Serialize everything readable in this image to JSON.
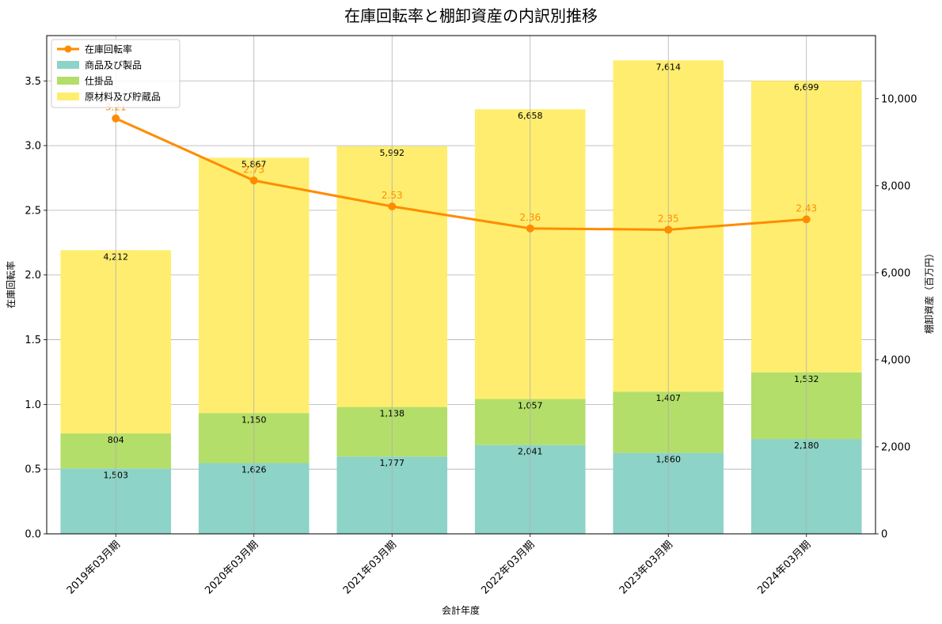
{
  "chart_data": {
    "type": "bar",
    "title": "在庫回転率と棚卸資産の内訳別推移",
    "xlabel": "会計年度",
    "ylabel_left": "在庫回転率",
    "ylabel_right": "棚卸資産（百万円）",
    "categories": [
      "2019年03月期",
      "2020年03月期",
      "2021年03月期",
      "2022年03月期",
      "2023年03月期",
      "2024年03月期"
    ],
    "ylim_left": [
      0,
      3.85
    ],
    "ylim_right": [
      0,
      11450
    ],
    "left_ticks": [
      "0.0",
      "0.5",
      "1.0",
      "1.5",
      "2.0",
      "2.5",
      "3.0",
      "3.5"
    ],
    "left_tick_values": [
      0,
      0.5,
      1.0,
      1.5,
      2.0,
      2.5,
      3.0,
      3.5
    ],
    "right_ticks": [
      "0",
      "2,000",
      "4,000",
      "6,000",
      "8,000",
      "10,000"
    ],
    "right_tick_values": [
      0,
      2000,
      4000,
      6000,
      8000,
      10000
    ],
    "grid": true,
    "legend_position": "top-left",
    "series": [
      {
        "name": "商品及び製品",
        "kind": "bar",
        "axis": "right",
        "color": "#8dd3c7",
        "values": [
          1503,
          1626,
          1777,
          2041,
          1860,
          2180
        ],
        "labels": [
          "1,503",
          "1,626",
          "1,777",
          "2,041",
          "1,860",
          "2,180"
        ]
      },
      {
        "name": "仕掛品",
        "kind": "bar",
        "axis": "right",
        "color": "#b3de69",
        "values": [
          804,
          1150,
          1138,
          1057,
          1407,
          1532
        ],
        "labels": [
          "804",
          "1,150",
          "1,138",
          "1,057",
          "1,407",
          "1,532"
        ]
      },
      {
        "name": "原材料及び貯蔵品",
        "kind": "bar",
        "axis": "right",
        "color": "#ffed6f",
        "values": [
          4212,
          5867,
          5992,
          6658,
          7614,
          6699
        ],
        "labels": [
          "4,212",
          "5,867",
          "5,992",
          "6,658",
          "7,614",
          "6,699"
        ]
      },
      {
        "name": "在庫回転率",
        "kind": "line",
        "axis": "left",
        "color": "#ff8c00",
        "values": [
          3.21,
          2.73,
          2.53,
          2.36,
          2.35,
          2.43
        ],
        "labels": [
          "3.21",
          "2.73",
          "2.53",
          "2.36",
          "2.35",
          "2.43"
        ]
      }
    ]
  }
}
